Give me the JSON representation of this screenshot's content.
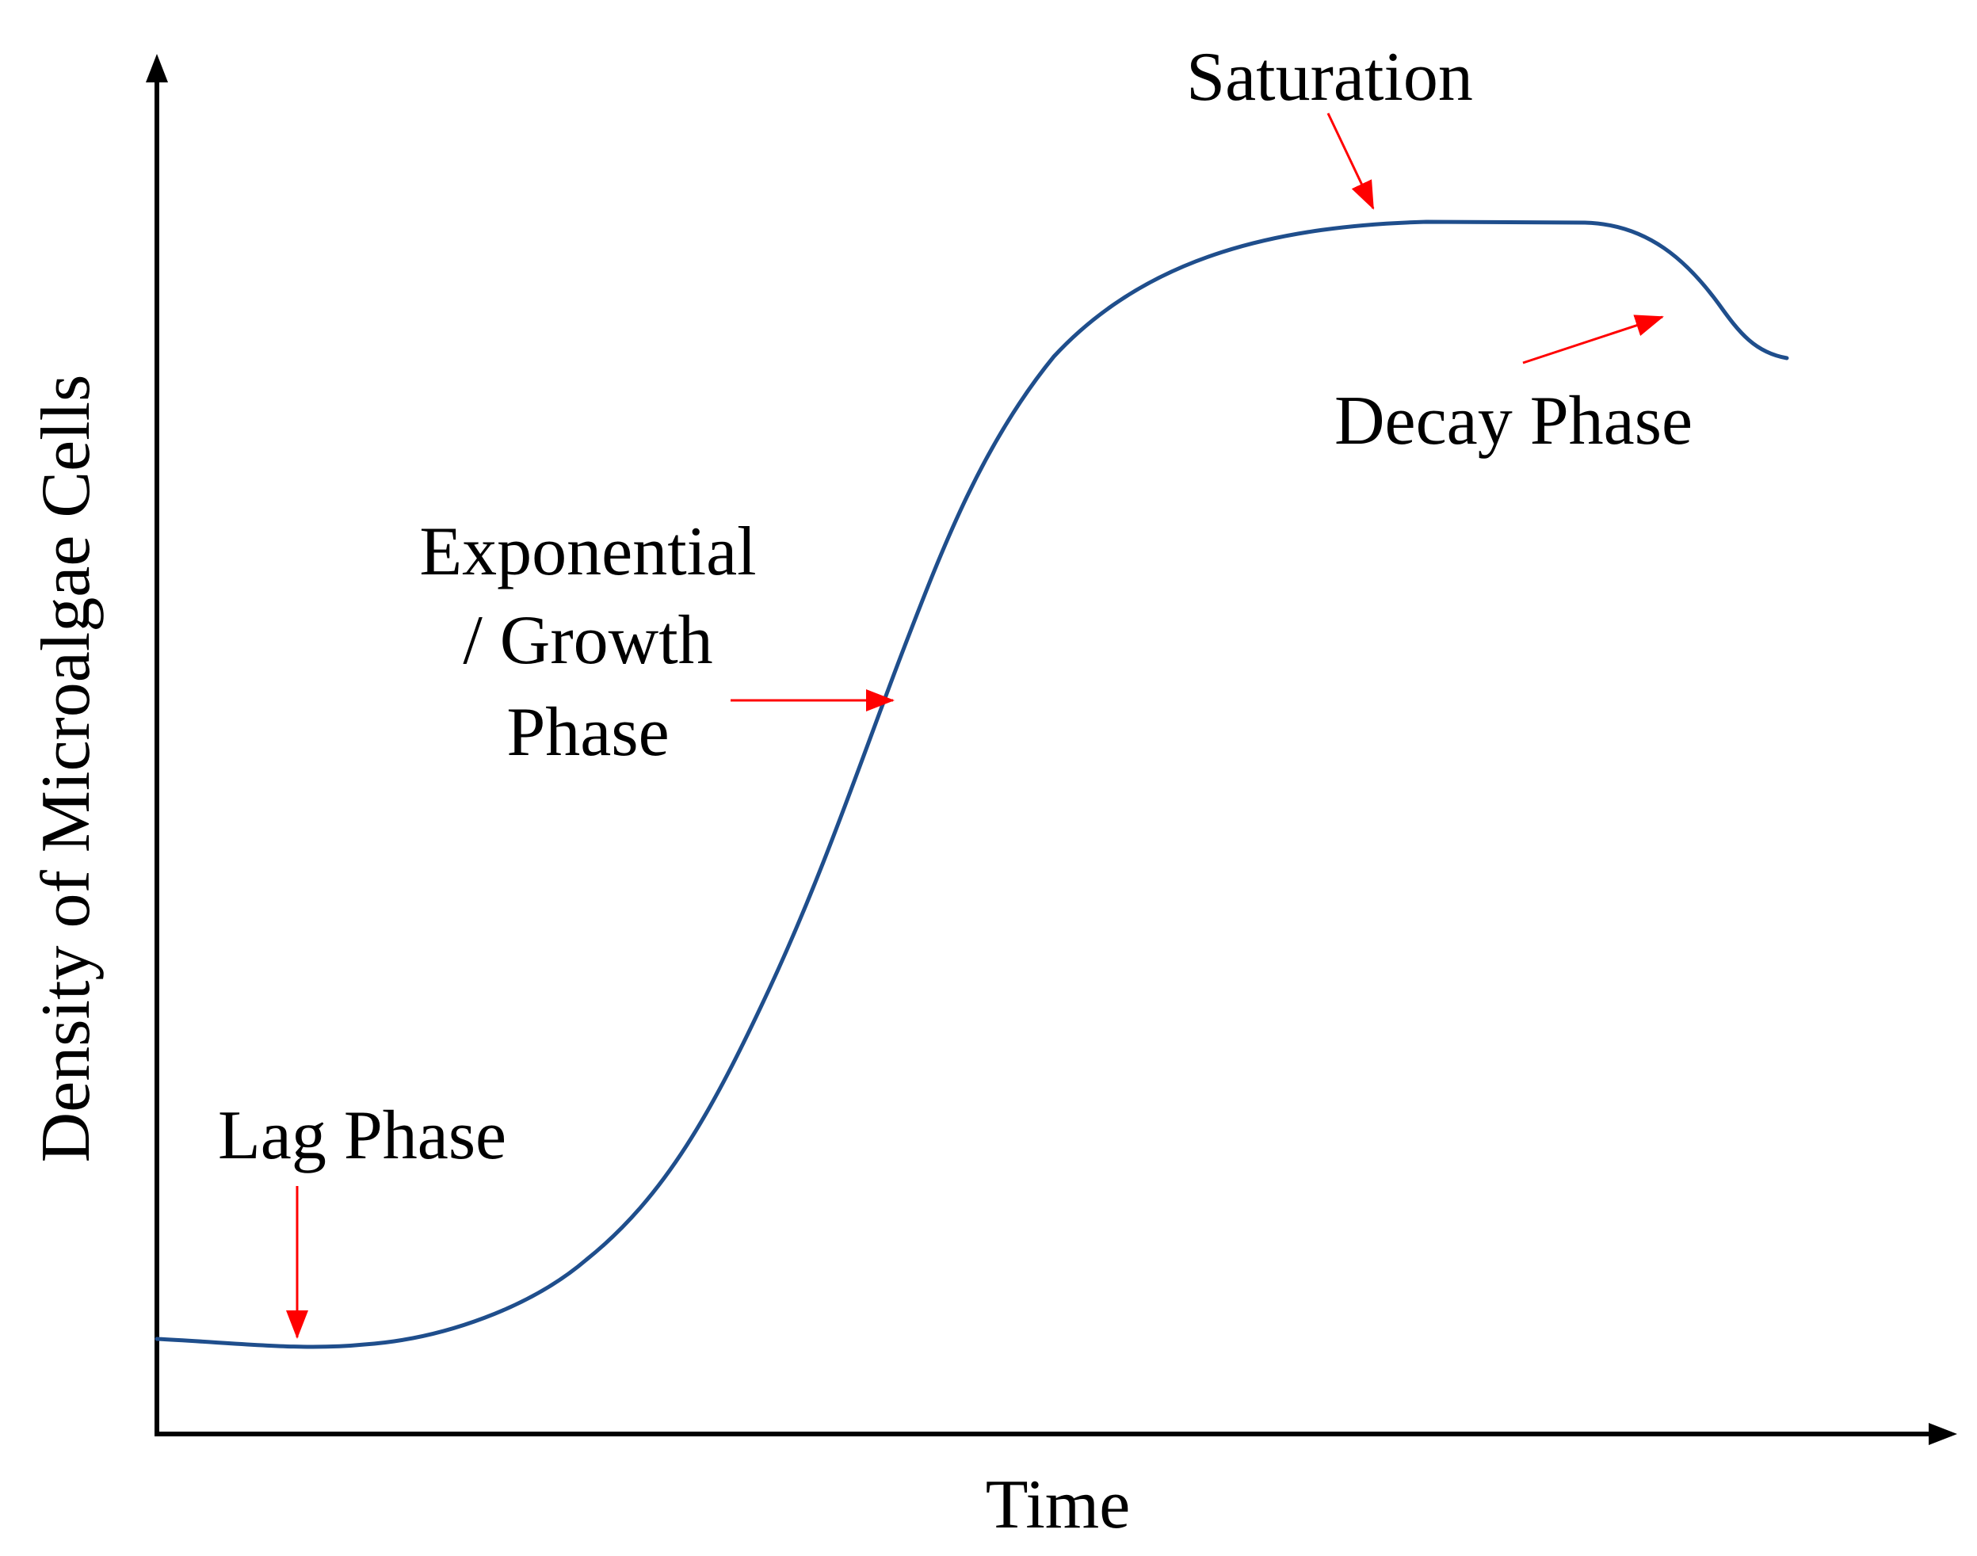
{
  "diagram": {
    "y_axis_label": "Density of  Microalgae Cells",
    "x_axis_label": "Time",
    "phases": {
      "lag": "Lag Phase",
      "exponential": [
        "Exponential",
        "/ Growth",
        "Phase"
      ],
      "saturation": "Saturation",
      "decay": "Decay Phase"
    }
  },
  "colors": {
    "curve": "#1f4e8c",
    "callout_arrows": "#ff0000",
    "axes": "#000000",
    "text": "#000000"
  }
}
